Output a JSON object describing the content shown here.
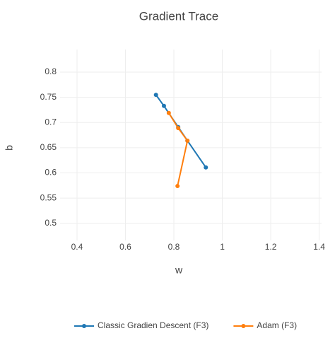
{
  "chart_data": {
    "type": "line",
    "title": "Gradient Trace",
    "x_label": "w",
    "y_label": "b",
    "xlim": [
      0.33,
      1.41
    ],
    "ylim": [
      0.466,
      0.845
    ],
    "xticks": [
      0.4,
      0.6,
      0.8,
      1,
      1.2,
      1.4
    ],
    "yticks": [
      0.5,
      0.55,
      0.6,
      0.65,
      0.7,
      0.75,
      0.8
    ],
    "grid": true,
    "legend": "bottom",
    "series": [
      {
        "name": "Classic Gradien Descent (F3)",
        "color": "#1f77b4",
        "x": [
          0.726,
          0.759,
          0.818,
          0.856,
          0.932
        ],
        "values": [
          0.755,
          0.733,
          0.691,
          0.664,
          0.611
        ]
      },
      {
        "name": "Adam (F3)",
        "color": "#ff7f0e",
        "x": [
          0.779,
          0.818,
          0.856,
          0.815
        ],
        "values": [
          0.719,
          0.689,
          0.664,
          0.574
        ]
      }
    ]
  }
}
